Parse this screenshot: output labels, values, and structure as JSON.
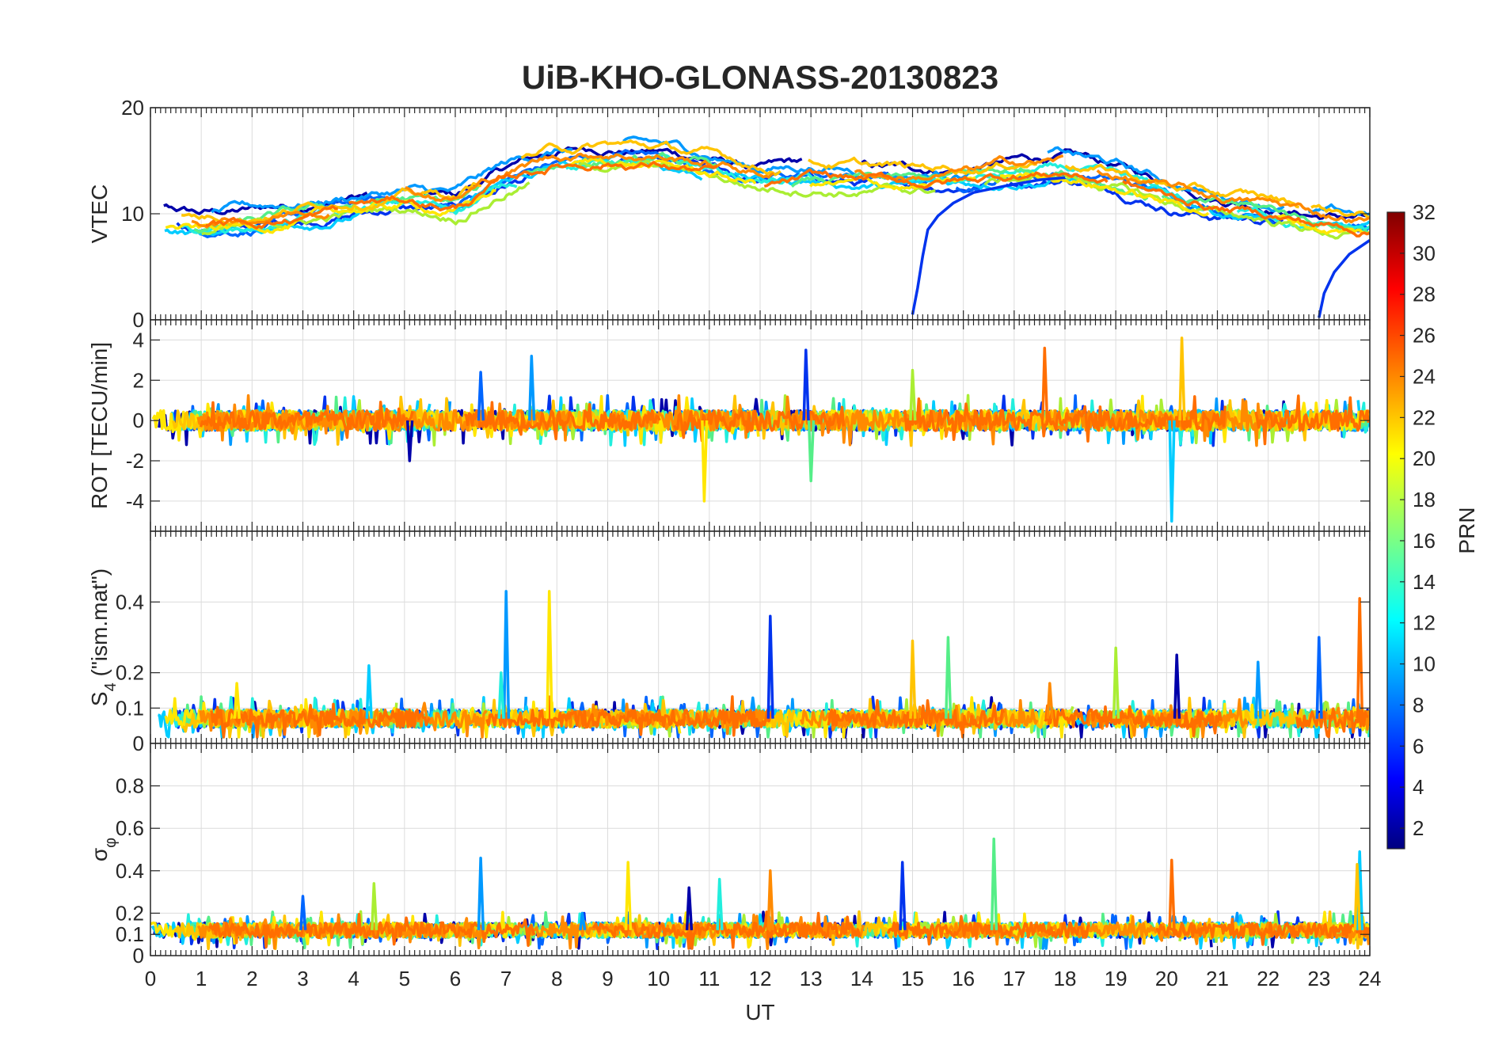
{
  "chart_data": {
    "type": "line",
    "title": "UiB-KHO-GLONASS-20130823",
    "xlabel": "UT",
    "xlim": [
      0,
      24
    ],
    "x_ticks": [
      "0",
      "1",
      "2",
      "3",
      "4",
      "5",
      "6",
      "7",
      "8",
      "9",
      "10",
      "11",
      "12",
      "13",
      "14",
      "15",
      "16",
      "17",
      "18",
      "19",
      "20",
      "21",
      "22",
      "23",
      "24"
    ],
    "panels": [
      {
        "id": "vtec",
        "ylabel": "VTEC",
        "ylim": [
          0,
          20
        ],
        "y_ticks": [
          {
            "v": 0,
            "label": "0"
          },
          {
            "v": 10,
            "label": "10"
          },
          {
            "v": 20,
            "label": "20"
          }
        ],
        "base": [
          [
            0,
            10
          ],
          [
            1,
            9.2
          ],
          [
            2,
            9.5
          ],
          [
            3,
            10.2
          ],
          [
            4,
            11
          ],
          [
            5,
            11.5
          ],
          [
            6,
            11
          ],
          [
            7,
            13.5
          ],
          [
            8,
            15
          ],
          [
            9,
            15.5
          ],
          [
            10,
            15.3
          ],
          [
            11,
            14.5
          ],
          [
            12,
            13.5
          ],
          [
            13,
            13.8
          ],
          [
            14,
            13.5
          ],
          [
            15,
            13.2
          ],
          [
            16,
            13.5
          ],
          [
            17,
            14.2
          ],
          [
            18,
            14.5
          ],
          [
            19,
            13.5
          ],
          [
            20,
            12
          ],
          [
            21,
            11
          ],
          [
            22,
            10.5
          ],
          [
            23,
            9.5
          ],
          [
            24,
            9
          ]
        ],
        "noise": 1.4,
        "smooth": true,
        "specials": [
          {
            "prn": 5,
            "points": [
              [
                15.0,
                0.5
              ],
              [
                15.1,
                3
              ],
              [
                15.2,
                6
              ],
              [
                15.3,
                8.5
              ],
              [
                15.5,
                9.8
              ],
              [
                15.8,
                11
              ],
              [
                16.2,
                12
              ],
              [
                16.8,
                12.6
              ],
              [
                17.5,
                13.2
              ],
              [
                18,
                13.4
              ]
            ]
          },
          {
            "prn": 10,
            "points": [
              [
                23.0,
                0.2
              ],
              [
                23.1,
                2.5
              ],
              [
                23.3,
                4.5
              ],
              [
                23.6,
                6.2
              ],
              [
                24,
                7.5
              ]
            ]
          }
        ]
      },
      {
        "id": "rot",
        "ylabel": "ROT [TECU/min]",
        "ylim": [
          -5.5,
          5
        ],
        "y_ticks": [
          {
            "v": -4,
            "label": "-4"
          },
          {
            "v": -2,
            "label": "-2"
          },
          {
            "v": 0,
            "label": "0"
          },
          {
            "v": 2,
            "label": "2"
          },
          {
            "v": 4,
            "label": "4"
          }
        ],
        "base": [
          [
            0,
            0
          ],
          [
            24,
            0
          ]
        ],
        "noise": 0.5,
        "smooth": false,
        "spikes": [
          [
            7.5,
            3.2
          ],
          [
            10.9,
            -4
          ],
          [
            12.9,
            3.5
          ],
          [
            13.0,
            -3
          ],
          [
            17.6,
            3.6
          ],
          [
            20.1,
            -5
          ],
          [
            20.3,
            4.1
          ],
          [
            6.5,
            2.4
          ],
          [
            15.0,
            2.5
          ],
          [
            5.1,
            -2
          ]
        ]
      },
      {
        "id": "s4",
        "ylabel": "S",
        "ylabel_sub": "4",
        "ylabel_suffix": " (\"ism.mat\")",
        "ylim": [
          0,
          0.6
        ],
        "y_ticks": [
          {
            "v": 0,
            "label": "0"
          },
          {
            "v": 0.1,
            "label": "0.1"
          },
          {
            "v": 0.2,
            "label": "0.2"
          },
          {
            "v": 0.4,
            "label": "0.4"
          }
        ],
        "base": [
          [
            0,
            0.07
          ],
          [
            24,
            0.07
          ]
        ],
        "noise": 0.025,
        "smooth": false,
        "spikes": [
          [
            7.0,
            0.43
          ],
          [
            7.85,
            0.43
          ],
          [
            12.2,
            0.36
          ],
          [
            15.7,
            0.3
          ],
          [
            23.8,
            0.41
          ],
          [
            4.3,
            0.22
          ],
          [
            15.0,
            0.29
          ],
          [
            23.0,
            0.3
          ],
          [
            19.0,
            0.27
          ],
          [
            20.2,
            0.25
          ],
          [
            6.9,
            0.2
          ],
          [
            17.7,
            0.17
          ],
          [
            21.8,
            0.23
          ],
          [
            1.7,
            0.17
          ]
        ]
      },
      {
        "id": "sigma",
        "ylabel": "σ",
        "ylabel_sub": "φ",
        "ylim": [
          0,
          1
        ],
        "y_ticks": [
          {
            "v": 0,
            "label": "0"
          },
          {
            "v": 0.1,
            "label": "0.1"
          },
          {
            "v": 0.2,
            "label": "0.2"
          },
          {
            "v": 0.4,
            "label": "0.4"
          },
          {
            "v": 0.6,
            "label": "0.6"
          },
          {
            "v": 0.8,
            "label": "0.8"
          }
        ],
        "base": [
          [
            0,
            0.12
          ],
          [
            24,
            0.12
          ]
        ],
        "noise": 0.035,
        "smooth": false,
        "spikes": [
          [
            6.5,
            0.46
          ],
          [
            9.4,
            0.44
          ],
          [
            14.8,
            0.44
          ],
          [
            16.6,
            0.55
          ],
          [
            20.1,
            0.45
          ],
          [
            23.8,
            0.49
          ],
          [
            23.75,
            0.43
          ],
          [
            3.0,
            0.28
          ],
          [
            4.4,
            0.34
          ],
          [
            10.6,
            0.32
          ],
          [
            11.2,
            0.36
          ],
          [
            12.2,
            0.4
          ],
          [
            8.5,
            0.2
          ]
        ]
      }
    ],
    "colorbar": {
      "label": "PRN",
      "min": 1,
      "max": 32,
      "ticks": [
        "2",
        "4",
        "6",
        "8",
        "10",
        "12",
        "14",
        "16",
        "18",
        "20",
        "22",
        "24",
        "26",
        "28",
        "30",
        "32"
      ]
    },
    "series": [
      {
        "prn": 2,
        "color": "#0000aa"
      },
      {
        "prn": 5,
        "color": "#0033ee"
      },
      {
        "prn": 7,
        "color": "#0066ff"
      },
      {
        "prn": 9,
        "color": "#0099ff"
      },
      {
        "prn": 11,
        "color": "#00ccff"
      },
      {
        "prn": 13,
        "color": "#22eedd"
      },
      {
        "prn": 15,
        "color": "#55ee88"
      },
      {
        "prn": 18,
        "color": "#aaee33"
      },
      {
        "prn": 20,
        "color": "#ffe600"
      },
      {
        "prn": 21,
        "color": "#ffc400"
      },
      {
        "prn": 23,
        "color": "#ff8a00"
      },
      {
        "prn": 24,
        "color": "#ff6e00"
      }
    ]
  }
}
